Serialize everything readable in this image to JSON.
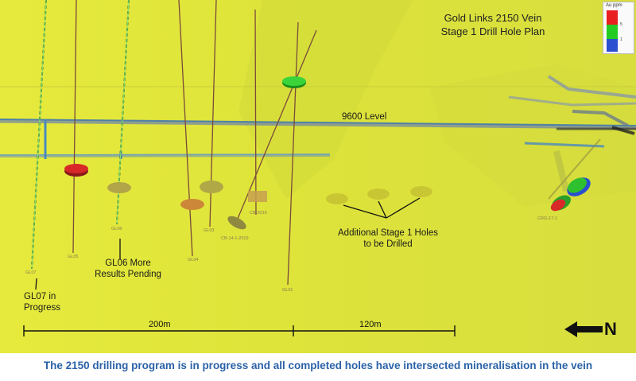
{
  "map": {
    "title_line1": "Gold Links 2150 Vein",
    "title_line2": "Stage 1 Drill Hole Plan",
    "level_label": "9600 Level",
    "legend": {
      "title": "Au ppm",
      "values": [
        "5",
        "1"
      ],
      "colors": [
        "#e82020",
        "#22cc22",
        "#2a4fd0"
      ]
    },
    "annotations": {
      "gl07_line1": "GL07 in",
      "gl07_line2": "Progress",
      "gl06_line1": "GL06 More",
      "gl06_line2": "Results Pending",
      "additional_line1": "Additional Stage 1 Holes",
      "additional_line2": "to be Drilled"
    },
    "hole_labels": {
      "gl07": "GL07",
      "gl05": "GL05",
      "gl06": "GL06",
      "gl04": "GL04",
      "gl03": "GL03",
      "cb_a": "CB-14-1-2019",
      "cb_b": "CB-2019",
      "gl01": "GL01",
      "crg": "CRG-17-1"
    },
    "scale": {
      "label_a": "200m",
      "label_b": "120m"
    },
    "north_label": "N",
    "background_color": "#e4e83a"
  },
  "caption": "The 2150 drilling program is in progress and all completed holes have intersected mineralisation in the vein"
}
